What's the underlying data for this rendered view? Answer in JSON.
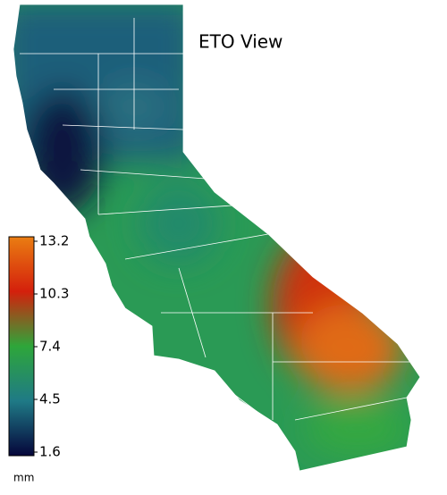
{
  "title": "ETO View",
  "legend": {
    "ticks": [
      1.6,
      4.5,
      7.4,
      10.3,
      13.2
    ],
    "colors": [
      "#05053a",
      "#1f7a86",
      "#2ea63a",
      "#d4200c",
      "#ea7d12"
    ],
    "unit": "mm"
  }
}
